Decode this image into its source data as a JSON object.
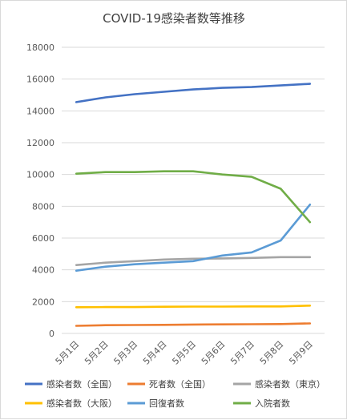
{
  "chart_data": {
    "type": "line",
    "title": "COVID-19感染者数等推移",
    "xlabel": "",
    "ylabel": "",
    "ylim": [
      0,
      18000
    ],
    "yticks": [
      0,
      2000,
      4000,
      6000,
      8000,
      10000,
      12000,
      14000,
      16000,
      18000
    ],
    "grid": true,
    "legend_position": "bottom",
    "categories": [
      "5月1日",
      "5月2日",
      "5月3日",
      "5月4日",
      "5月5日",
      "5月6日",
      "5月7日",
      "5月8日",
      "5月9日"
    ],
    "series": [
      {
        "name": "感染者数（全国）",
        "color": "#4472c4",
        "values": [
          14550,
          14850,
          15050,
          15200,
          15350,
          15450,
          15500,
          15600,
          15700
        ]
      },
      {
        "name": "死者数（全国）",
        "color": "#ed7d31",
        "values": [
          480,
          520,
          530,
          540,
          560,
          570,
          580,
          590,
          630
        ]
      },
      {
        "name": "感染者数（東京）",
        "color": "#a5a5a5",
        "values": [
          4300,
          4450,
          4550,
          4650,
          4700,
          4720,
          4750,
          4800,
          4800
        ]
      },
      {
        "name": "感染者数（大阪）",
        "color": "#ffc000",
        "values": [
          1650,
          1660,
          1660,
          1680,
          1690,
          1690,
          1700,
          1700,
          1750
        ]
      },
      {
        "name": "回復者数",
        "color": "#5b9bd5",
        "values": [
          3950,
          4200,
          4350,
          4450,
          4550,
          4900,
          5100,
          5850,
          8100
        ]
      },
      {
        "name": "入院者数",
        "color": "#70ad47",
        "values": [
          10050,
          10150,
          10150,
          10200,
          10200,
          10000,
          9850,
          9100,
          7000
        ]
      }
    ]
  }
}
